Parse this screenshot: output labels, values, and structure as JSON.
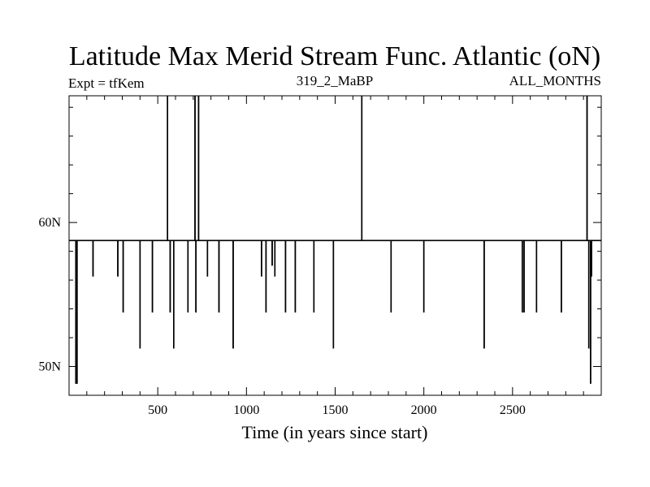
{
  "chart_data": {
    "type": "line",
    "title": "Latitude Max Merid Stream Func. Atlantic (oN)",
    "left_label": "Expt = tfKem",
    "center_label": "319_2_MaBP",
    "right_label": "ALL_MONTHS",
    "xlabel": "Time (in years since start)",
    "ylabel": "",
    "xlim": [
      0,
      3000
    ],
    "ylim": [
      48.0,
      68.8
    ],
    "x_ticks": [
      500,
      1000,
      1500,
      2000,
      2500
    ],
    "x_tick_labels": [
      "500",
      "1000",
      "1500",
      "2000",
      "2500"
    ],
    "y_ticks": [
      50,
      60
    ],
    "y_tick_labels": [
      "50N",
      "60N"
    ],
    "grid": false,
    "baseline": 58.75,
    "series": [
      {
        "name": "",
        "color": "#000000",
        "spikes": [
          {
            "x": 38,
            "y": 48.8
          },
          {
            "x": 45,
            "y": 48.8
          },
          {
            "x": 135,
            "y": 56.25
          },
          {
            "x": 275,
            "y": 56.25
          },
          {
            "x": 305,
            "y": 53.75
          },
          {
            "x": 400,
            "y": 51.25
          },
          {
            "x": 470,
            "y": 53.75
          },
          {
            "x": 555,
            "y": 68.8
          },
          {
            "x": 570,
            "y": 53.75
          },
          {
            "x": 590,
            "y": 51.25
          },
          {
            "x": 670,
            "y": 53.75
          },
          {
            "x": 710,
            "y": 68.8
          },
          {
            "x": 715,
            "y": 53.75
          },
          {
            "x": 730,
            "y": 68.8
          },
          {
            "x": 780,
            "y": 56.25
          },
          {
            "x": 845,
            "y": 53.75
          },
          {
            "x": 925,
            "y": 51.25
          },
          {
            "x": 1085,
            "y": 56.25
          },
          {
            "x": 1110,
            "y": 53.75
          },
          {
            "x": 1145,
            "y": 57.0
          },
          {
            "x": 1160,
            "y": 56.25
          },
          {
            "x": 1220,
            "y": 53.75
          },
          {
            "x": 1275,
            "y": 53.75
          },
          {
            "x": 1380,
            "y": 53.75
          },
          {
            "x": 1490,
            "y": 51.25
          },
          {
            "x": 1650,
            "y": 68.8
          },
          {
            "x": 1815,
            "y": 53.75
          },
          {
            "x": 2000,
            "y": 53.75
          },
          {
            "x": 2340,
            "y": 51.25
          },
          {
            "x": 2555,
            "y": 53.75
          },
          {
            "x": 2565,
            "y": 53.75
          },
          {
            "x": 2635,
            "y": 53.75
          },
          {
            "x": 2775,
            "y": 53.75
          },
          {
            "x": 2920,
            "y": 68.8
          },
          {
            "x": 2930,
            "y": 51.25
          },
          {
            "x": 2940,
            "y": 48.8
          },
          {
            "x": 2945,
            "y": 56.25
          }
        ]
      }
    ]
  }
}
